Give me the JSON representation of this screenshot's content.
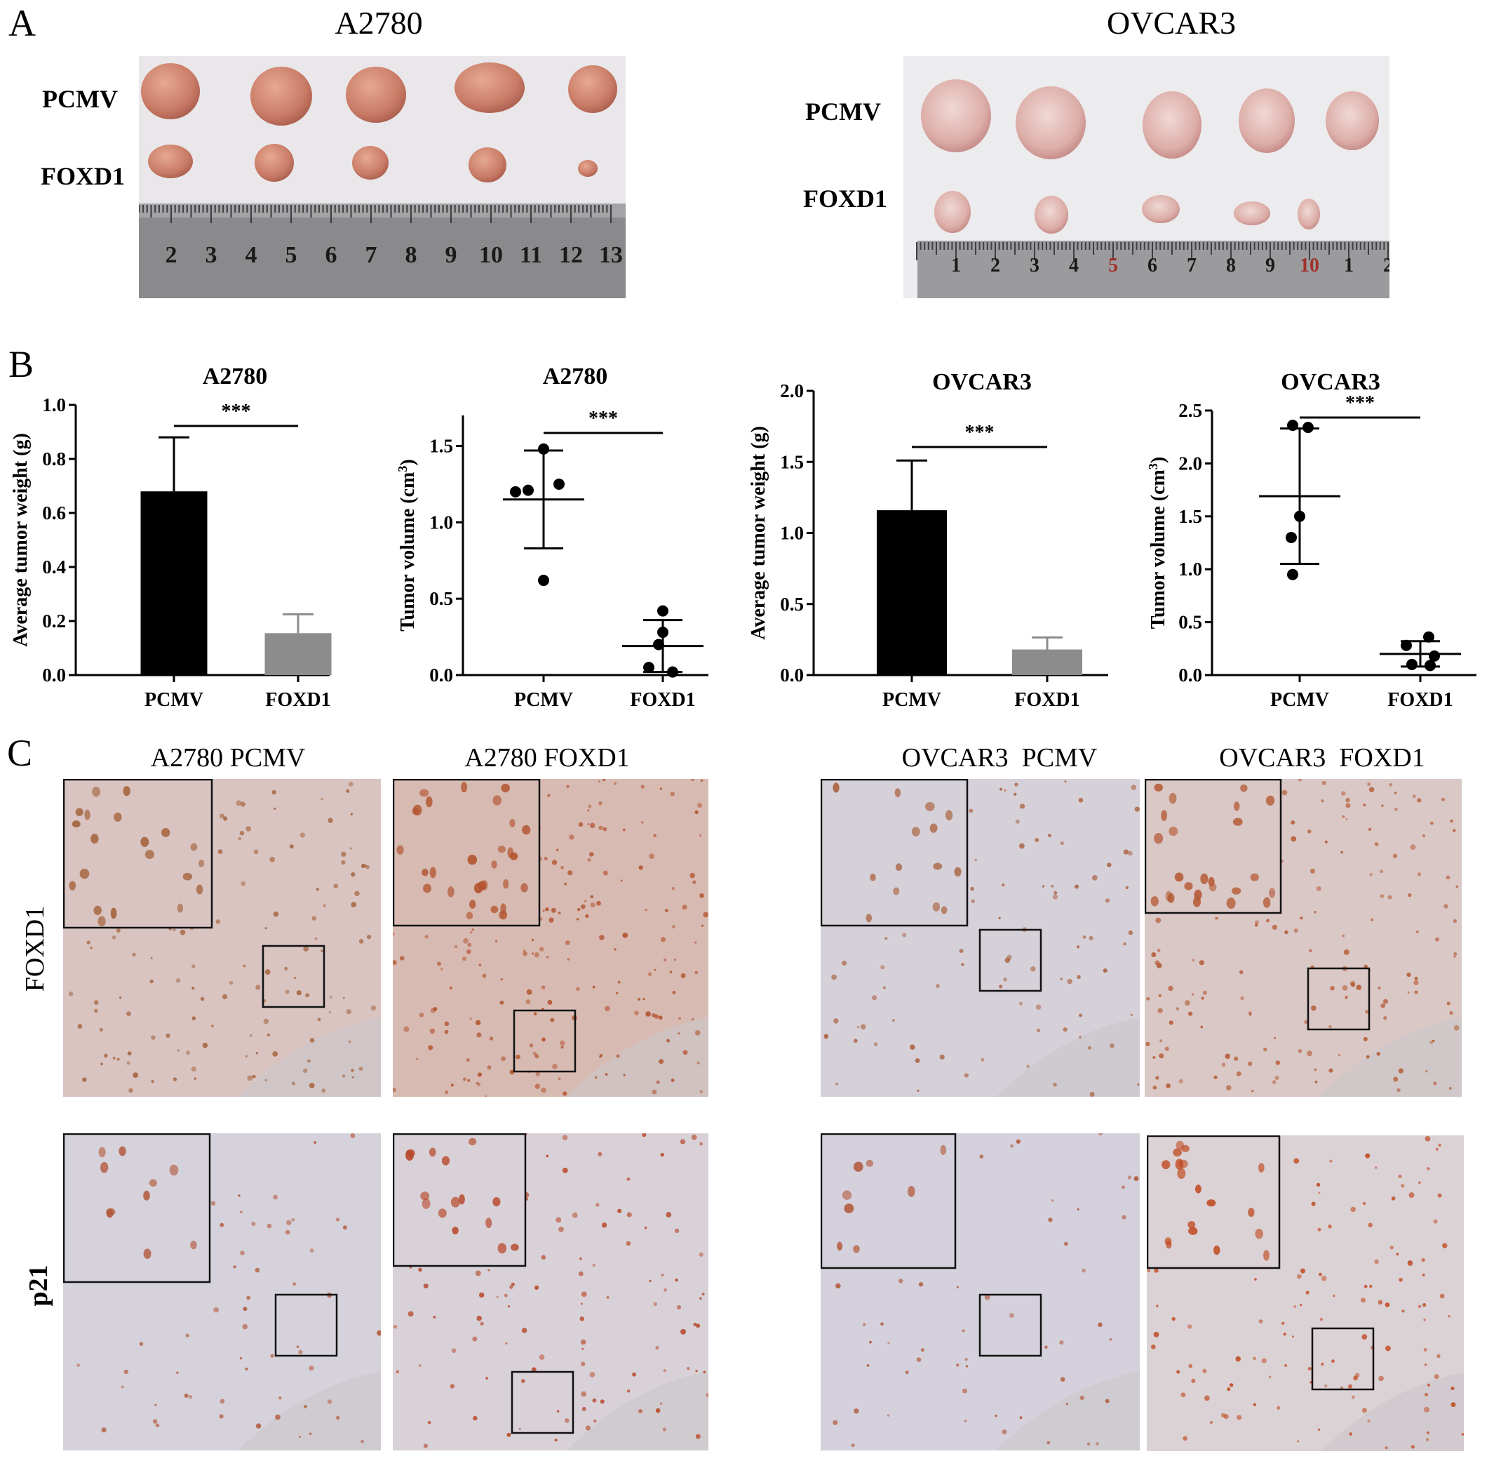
{
  "panelA": {
    "letter": "A",
    "left": {
      "title": "A2780",
      "row_labels": [
        "PCMV",
        "FOXD1"
      ],
      "ruler_numbers": [
        "2",
        "3",
        "4",
        "5",
        "6",
        "7",
        "8",
        "9",
        "10",
        "11",
        "12",
        "13"
      ]
    },
    "right": {
      "title": "OVCAR3",
      "row_labels": [
        "PCMV",
        "FOXD1"
      ],
      "ruler_numbers": [
        "1",
        "2",
        "3",
        "4",
        "5",
        "6",
        "7",
        "8",
        "9",
        "10",
        "1",
        "2"
      ]
    }
  },
  "panelB": {
    "letter": "B",
    "charts": [
      {
        "title": "A2780",
        "ylabel": "Average tumor weight (g)",
        "sig": "***"
      },
      {
        "title": "A2780",
        "ylabel_main": "Tumor volume (cm",
        "ylabel_sup": "3",
        "ylabel_close": ")",
        "sig": "***"
      },
      {
        "title": "OVCAR3",
        "ylabel": "Average tumor weight (g)",
        "sig": "***"
      },
      {
        "title": "OVCAR3",
        "ylabel_main": "Tumor volume (cm",
        "ylabel_sup": "3",
        "ylabel_close": ")",
        "sig": "***"
      }
    ]
  },
  "chart_data": [
    {
      "type": "bar",
      "title": "A2780",
      "ylabel": "Average tumor weight (g)",
      "categories": [
        "PCMV",
        "FOXD1"
      ],
      "values": [
        0.68,
        0.155
      ],
      "errors": [
        0.2,
        0.07
      ],
      "ylim": [
        0,
        1.0
      ],
      "yticks": [
        "0.0",
        "0.2",
        "0.4",
        "0.6",
        "0.8",
        "1.0"
      ],
      "colors": [
        "#000000",
        "#8c8c8c"
      ]
    },
    {
      "type": "scatter",
      "title": "A2780",
      "ylabel": "Tumor volume (cm3)",
      "categories": [
        "PCMV",
        "FOXD1"
      ],
      "points": [
        [
          1.48,
          1.21,
          1.25,
          1.2,
          0.62
        ],
        [
          0.42,
          0.28,
          0.2,
          0.05,
          0.02
        ]
      ],
      "means": [
        1.15,
        0.19
      ],
      "sd": [
        0.32,
        0.17
      ],
      "ylim": [
        0,
        1.7
      ],
      "yticks": [
        "0.0",
        "0.5",
        "1.0",
        "1.5"
      ]
    },
    {
      "type": "bar",
      "title": "OVCAR3",
      "ylabel": "Average tumor weight (g)",
      "categories": [
        "PCMV",
        "FOXD1"
      ],
      "values": [
        1.16,
        0.18
      ],
      "errors": [
        0.35,
        0.085
      ],
      "ylim": [
        0,
        2.0
      ],
      "yticks": [
        "0.0",
        "0.5",
        "1.0",
        "1.5",
        "2.0"
      ],
      "colors": [
        "#000000",
        "#8c8c8c"
      ]
    },
    {
      "type": "scatter",
      "title": "OVCAR3",
      "ylabel": "Tumor volume (cm3)",
      "categories": [
        "PCMV",
        "FOXD1"
      ],
      "points": [
        [
          2.36,
          2.34,
          1.5,
          1.3,
          0.95
        ],
        [
          0.36,
          0.28,
          0.18,
          0.1,
          0.09
        ]
      ],
      "means": [
        1.69,
        0.2
      ],
      "sd": [
        0.64,
        0.12
      ],
      "ylim": [
        0,
        2.5
      ],
      "yticks": [
        "0.0",
        "0.5",
        "1.0",
        "1.5",
        "2.0",
        "2.5"
      ]
    }
  ],
  "panelC": {
    "letter": "C",
    "col_titles": [
      "A2780 PCMV",
      "A2780 FOXD1",
      "OVCAR3  PCMV",
      "OVCAR3  FOXD1"
    ],
    "row_labels": [
      "FOXD1",
      "p21"
    ]
  }
}
